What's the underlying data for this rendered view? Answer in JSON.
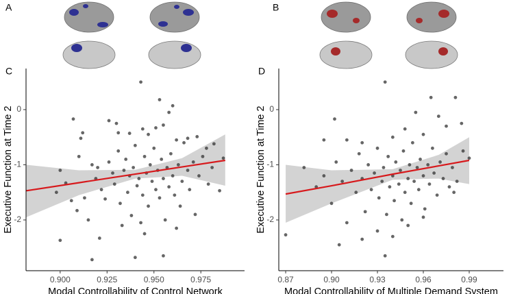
{
  "panels": {
    "a": "A",
    "b": "B"
  },
  "chart_data": [
    {
      "type": "scatter",
      "panel": "C",
      "x_label": "Modal Controllability of Control Network",
      "y_label": "Executive Function at Time 2",
      "point_color": "#333333",
      "xlim": [
        0.8818,
        0.9983
      ],
      "ylim": [
        -2.92,
        0.745
      ],
      "xticks": [
        {
          "value": 0.9,
          "label": "0.900"
        },
        {
          "value": 0.925,
          "label": "0.925"
        },
        {
          "value": 0.95,
          "label": "0.950"
        },
        {
          "value": 0.975,
          "label": "0.975"
        }
      ],
      "yticks": [
        0,
        -1,
        -2
      ],
      "x": [
        0.943,
        0.953,
        0.96,
        0.907,
        0.912,
        0.911,
        0.926,
        0.931,
        0.937,
        0.944,
        0.951,
        0.955,
        0.962,
        0.968,
        0.973,
        0.978,
        0.982,
        0.9,
        0.903,
        0.898,
        0.909,
        0.913,
        0.917,
        0.919,
        0.92,
        0.922,
        0.924,
        0.926,
        0.928,
        0.929,
        0.931,
        0.932,
        0.934,
        0.935,
        0.936,
        0.937,
        0.938,
        0.939,
        0.94,
        0.941,
        0.942,
        0.943,
        0.944,
        0.945,
        0.946,
        0.947,
        0.948,
        0.949,
        0.95,
        0.951,
        0.952,
        0.953,
        0.954,
        0.955,
        0.956,
        0.957,
        0.958,
        0.959,
        0.96,
        0.961,
        0.963,
        0.964,
        0.965,
        0.966,
        0.968,
        0.969,
        0.971,
        0.972,
        0.974,
        0.976,
        0.979,
        0.981,
        0.985,
        0.987,
        0.9,
        0.917,
        0.921,
        0.94,
        0.955,
        0.962,
        0.945,
        0.933,
        0.915,
        0.906,
        0.91,
        0.93,
        0.958,
        0.947
      ],
      "values": [
        0.5,
        0.18,
        0.07,
        -0.17,
        -0.42,
        -0.52,
        -0.2,
        -0.42,
        -0.43,
        -0.35,
        -0.33,
        -0.28,
        -0.55,
        -0.52,
        -0.49,
        -0.7,
        -0.62,
        -1.1,
        -1.33,
        -1.5,
        -1.83,
        -1.6,
        -1.0,
        -1.25,
        -1.05,
        -1.45,
        -1.62,
        -0.95,
        -1.15,
        -1.35,
        -0.75,
        -1.7,
        -1.1,
        -0.9,
        -1.5,
        -1.2,
        -1.92,
        -1.05,
        -0.65,
        -1.38,
        -1.25,
        -2.05,
        -1.55,
        -0.85,
        -1.15,
        -1.75,
        -1.0,
        -1.3,
        -0.7,
        -1.45,
        -1.1,
        -1.6,
        -0.9,
        -1.25,
        -2.0,
        -1.05,
        -1.4,
        -0.8,
        -1.2,
        -1.55,
        -1.0,
        -1.75,
        -1.3,
        -0.6,
        -1.1,
        -1.45,
        -0.95,
        -1.9,
        -1.2,
        -0.85,
        -1.35,
        -1.05,
        -1.47,
        -0.88,
        -2.37,
        -2.72,
        -2.33,
        -2.68,
        -2.65,
        -2.15,
        -2.25,
        -2.1,
        -2.0,
        -1.65,
        -0.85,
        -0.25,
        -0.05,
        -0.45
      ],
      "fit": {
        "color": "#d7191c",
        "band_color": "#d3d3d3",
        "x": [
          0.882,
          0.91,
          0.94,
          0.965,
          0.988
        ],
        "values": [
          -1.47,
          -1.325,
          -1.169,
          -1.039,
          -0.92
        ],
        "upper": [
          -1.0,
          -1.1,
          -1.09,
          -0.88,
          -0.45
        ],
        "lower": [
          -1.95,
          -1.55,
          -1.25,
          -1.2,
          -1.38
        ]
      }
    },
    {
      "type": "scatter",
      "panel": "D",
      "x_label": "Modal Controllability of Multiple Demand System",
      "y_label": "Executive Function at Time 2",
      "point_color": "#333333",
      "xlim": [
        0.8655,
        1.0124
      ],
      "ylim": [
        -2.92,
        0.745
      ],
      "xticks": [
        0.87,
        {
          "value": 0.9,
          "label": "0.90"
        },
        0.93,
        0.96,
        0.99
      ],
      "yticks": [
        0,
        -1,
        -2
      ],
      "x": [
        0.935,
        0.965,
        0.981,
        0.955,
        0.97,
        0.975,
        0.985,
        0.902,
        0.895,
        0.91,
        0.92,
        0.94,
        0.948,
        0.96,
        0.87,
        0.882,
        0.89,
        0.895,
        0.9,
        0.903,
        0.907,
        0.91,
        0.913,
        0.916,
        0.918,
        0.92,
        0.922,
        0.924,
        0.926,
        0.928,
        0.93,
        0.931,
        0.933,
        0.934,
        0.936,
        0.937,
        0.938,
        0.94,
        0.941,
        0.942,
        0.944,
        0.945,
        0.946,
        0.947,
        0.948,
        0.95,
        0.951,
        0.952,
        0.953,
        0.954,
        0.956,
        0.957,
        0.958,
        0.96,
        0.961,
        0.963,
        0.964,
        0.966,
        0.967,
        0.969,
        0.971,
        0.973,
        0.975,
        0.977,
        0.979,
        0.982,
        0.986,
        0.99,
        0.935,
        0.92,
        0.93,
        0.95,
        0.94,
        0.96,
        0.905,
        0.98
      ],
      "values": [
        0.5,
        0.22,
        0.22,
        -0.05,
        -0.12,
        -0.3,
        -0.25,
        -0.17,
        -0.55,
        -0.55,
        -0.6,
        -0.5,
        -0.35,
        -0.45,
        -2.27,
        -1.05,
        -1.4,
        -1.2,
        -1.7,
        -0.95,
        -1.3,
        -2.05,
        -1.1,
        -1.5,
        -0.8,
        -1.25,
        -1.85,
        -1.0,
        -1.45,
        -1.15,
        -0.7,
        -1.6,
        -1.3,
        -1.05,
        -1.9,
        -0.85,
        -1.4,
        -1.2,
        -1.65,
        -0.95,
        -1.35,
        -1.1,
        -2.0,
        -0.75,
        -1.5,
        -1.25,
        -1.0,
        -1.7,
        -0.6,
        -1.3,
        -1.05,
        -1.45,
        -0.9,
        -1.2,
        -1.8,
        -1.0,
        -1.35,
        -0.7,
        -1.15,
        -1.55,
        -0.95,
        -1.25,
        -0.8,
        -1.4,
        -1.05,
        -1.3,
        -0.75,
        -0.88,
        -2.65,
        -2.35,
        -2.2,
        -2.1,
        -2.3,
        -1.95,
        -2.45,
        -1.5
      ],
      "fit": {
        "color": "#d7191c",
        "band_color": "#d3d3d3",
        "x": [
          0.87,
          0.9,
          0.94,
          0.97,
          0.99
        ],
        "values": [
          -1.53,
          -1.38,
          -1.17,
          -1.02,
          -0.92
        ],
        "upper": [
          -1.0,
          -1.1,
          -1.08,
          -0.82,
          -0.5
        ],
        "lower": [
          -2.05,
          -1.7,
          -1.27,
          -1.25,
          -1.35
        ]
      }
    }
  ]
}
